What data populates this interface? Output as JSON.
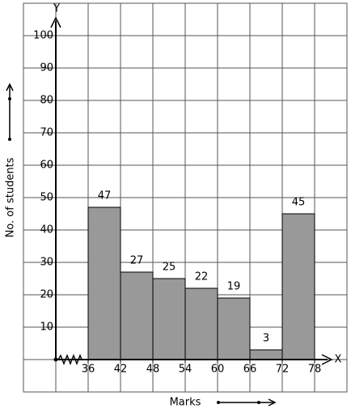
{
  "chart_data": {
    "type": "histogram",
    "x_label": "Marks",
    "y_label": "No. of students",
    "x_axis_name": "X",
    "y_axis_name": "Y",
    "bins": [
      36,
      42,
      48,
      54,
      60,
      66,
      72,
      78
    ],
    "values": [
      47,
      27,
      25,
      22,
      19,
      3,
      45
    ],
    "color": "#999999",
    "xlim": [
      36,
      78
    ],
    "xticks": [
      36,
      42,
      48,
      54,
      60,
      66,
      72,
      78
    ],
    "ylim": [
      0,
      100
    ],
    "yticks": [
      10,
      20,
      30,
      40,
      50,
      60,
      70,
      80,
      90,
      100
    ],
    "grid": true
  }
}
